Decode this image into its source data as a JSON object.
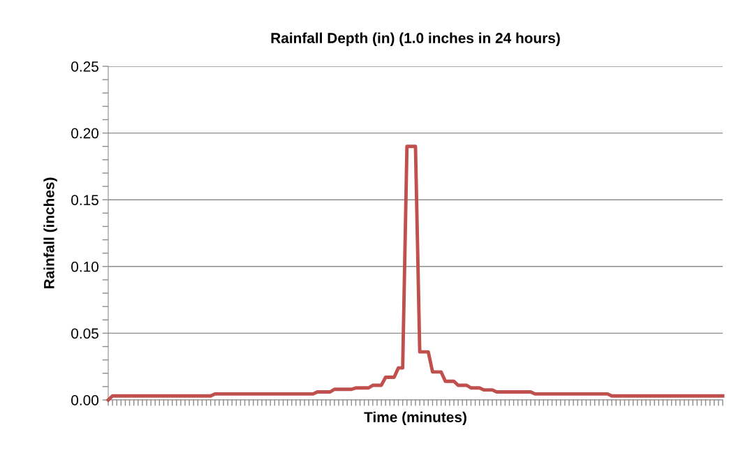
{
  "chart_data": {
    "type": "line",
    "title": "Rainfall Depth (in) (1.0 inches in 24 hours)",
    "xlabel": "Time (minutes)",
    "ylabel": "Rainfall (inches)",
    "categories": [
      null,
      null,
      null,
      null,
      null,
      null,
      null,
      null,
      null,
      null,
      null,
      null,
      null,
      null,
      null,
      null,
      null,
      null,
      null,
      null,
      null,
      null,
      null,
      null,
      null,
      null,
      null,
      null,
      null,
      null,
      null,
      null,
      null,
      null,
      null,
      null,
      null,
      null,
      null,
      null,
      null,
      null,
      null,
      null,
      null,
      null,
      null,
      null,
      null,
      null,
      null,
      null,
      null,
      null,
      null,
      null,
      null,
      null,
      null,
      null,
      null,
      null,
      null,
      null,
      null,
      null,
      null,
      null,
      null,
      null,
      null,
      null,
      null,
      null,
      null,
      null,
      null,
      null,
      null,
      null,
      null,
      null,
      null,
      null,
      null,
      null,
      null,
      null,
      null,
      null,
      null,
      null,
      null,
      null,
      null,
      null,
      null,
      null,
      null,
      null,
      null,
      null,
      null,
      null,
      null,
      null,
      null,
      null,
      null,
      null,
      null,
      null,
      null,
      null,
      null,
      null,
      null,
      null,
      null,
      null,
      null,
      null,
      null,
      null,
      null,
      null,
      null,
      null,
      null,
      null,
      null,
      null,
      null,
      null,
      null,
      null,
      null,
      null,
      null,
      null,
      null,
      null,
      null,
      null,
      null
    ],
    "series": [
      {
        "color": "#c0504d",
        "values": [
          0,
          0.003,
          0.003,
          0.003,
          0.003,
          0.003,
          0.003,
          0.003,
          0.003,
          0.003,
          0.003,
          0.003,
          0.003,
          0.003,
          0.003,
          0.003,
          0.003,
          0.003,
          0.003,
          0.003,
          0.003,
          0.003,
          0.003,
          0.003,
          0.003,
          0.0045,
          0.0045,
          0.0045,
          0.0045,
          0.0045,
          0.0045,
          0.0045,
          0.0045,
          0.0045,
          0.0045,
          0.0045,
          0.0045,
          0.0045,
          0.0045,
          0.0045,
          0.0045,
          0.0045,
          0.0045,
          0.0045,
          0.0045,
          0.0045,
          0.0045,
          0.0045,
          0.0045,
          0.006,
          0.006,
          0.006,
          0.006,
          0.008,
          0.008,
          0.008,
          0.008,
          0.008,
          0.009,
          0.009,
          0.009,
          0.009,
          0.011,
          0.011,
          0.011,
          0.017,
          0.017,
          0.017,
          0.024,
          0.024,
          0.19,
          0.19,
          0.19,
          0.036,
          0.036,
          0.036,
          0.021,
          0.021,
          0.021,
          0.014,
          0.014,
          0.014,
          0.011,
          0.011,
          0.011,
          0.009,
          0.009,
          0.009,
          0.0075,
          0.0075,
          0.0075,
          0.006,
          0.006,
          0.006,
          0.006,
          0.006,
          0.006,
          0.006,
          0.006,
          0.006,
          0.0045,
          0.0045,
          0.0045,
          0.0045,
          0.0045,
          0.0045,
          0.0045,
          0.0045,
          0.0045,
          0.0045,
          0.0045,
          0.0045,
          0.0045,
          0.0045,
          0.0045,
          0.0045,
          0.0045,
          0.0045,
          0.003,
          0.003,
          0.003,
          0.003,
          0.003,
          0.003,
          0.003,
          0.003,
          0.003,
          0.003,
          0.003,
          0.003,
          0.003,
          0.003,
          0.003,
          0.003,
          0.003,
          0.003,
          0.003,
          0.003,
          0.003,
          0.003,
          0.003,
          0.003,
          0.003,
          0.003,
          0.003
        ]
      }
    ],
    "ylim": [
      0,
      0.25
    ],
    "yticks": [
      {
        "value": 0,
        "label": "0.00"
      },
      {
        "value": 0.01,
        "label": null
      },
      {
        "value": 0.02,
        "label": null
      },
      {
        "value": 0.03,
        "label": null
      },
      {
        "value": 0.04,
        "label": null
      },
      {
        "value": 0.05,
        "label": "0.05"
      },
      {
        "value": 0.06,
        "label": null
      },
      {
        "value": 0.07,
        "label": null
      },
      {
        "value": 0.08,
        "label": null
      },
      {
        "value": 0.09,
        "label": null
      },
      {
        "value": 0.1,
        "label": "0.10"
      },
      {
        "value": 0.11,
        "label": null
      },
      {
        "value": 0.12,
        "label": null
      },
      {
        "value": 0.13,
        "label": null
      },
      {
        "value": 0.14,
        "label": null
      },
      {
        "value": 0.15,
        "label": "0.15"
      },
      {
        "value": 0.16,
        "label": null
      },
      {
        "value": 0.17,
        "label": null
      },
      {
        "value": 0.18,
        "label": null
      },
      {
        "value": 0.19,
        "label": null
      },
      {
        "value": 0.2,
        "label": "0.20"
      },
      {
        "value": 0.21,
        "label": null
      },
      {
        "value": 0.22,
        "label": null
      },
      {
        "value": 0.23,
        "label": null
      },
      {
        "value": 0.24,
        "label": null
      },
      {
        "value": 0.25,
        "label": "0.25"
      }
    ],
    "grid": "y",
    "tick_labels": "y",
    "marker": "none",
    "line_style": "solid"
  }
}
